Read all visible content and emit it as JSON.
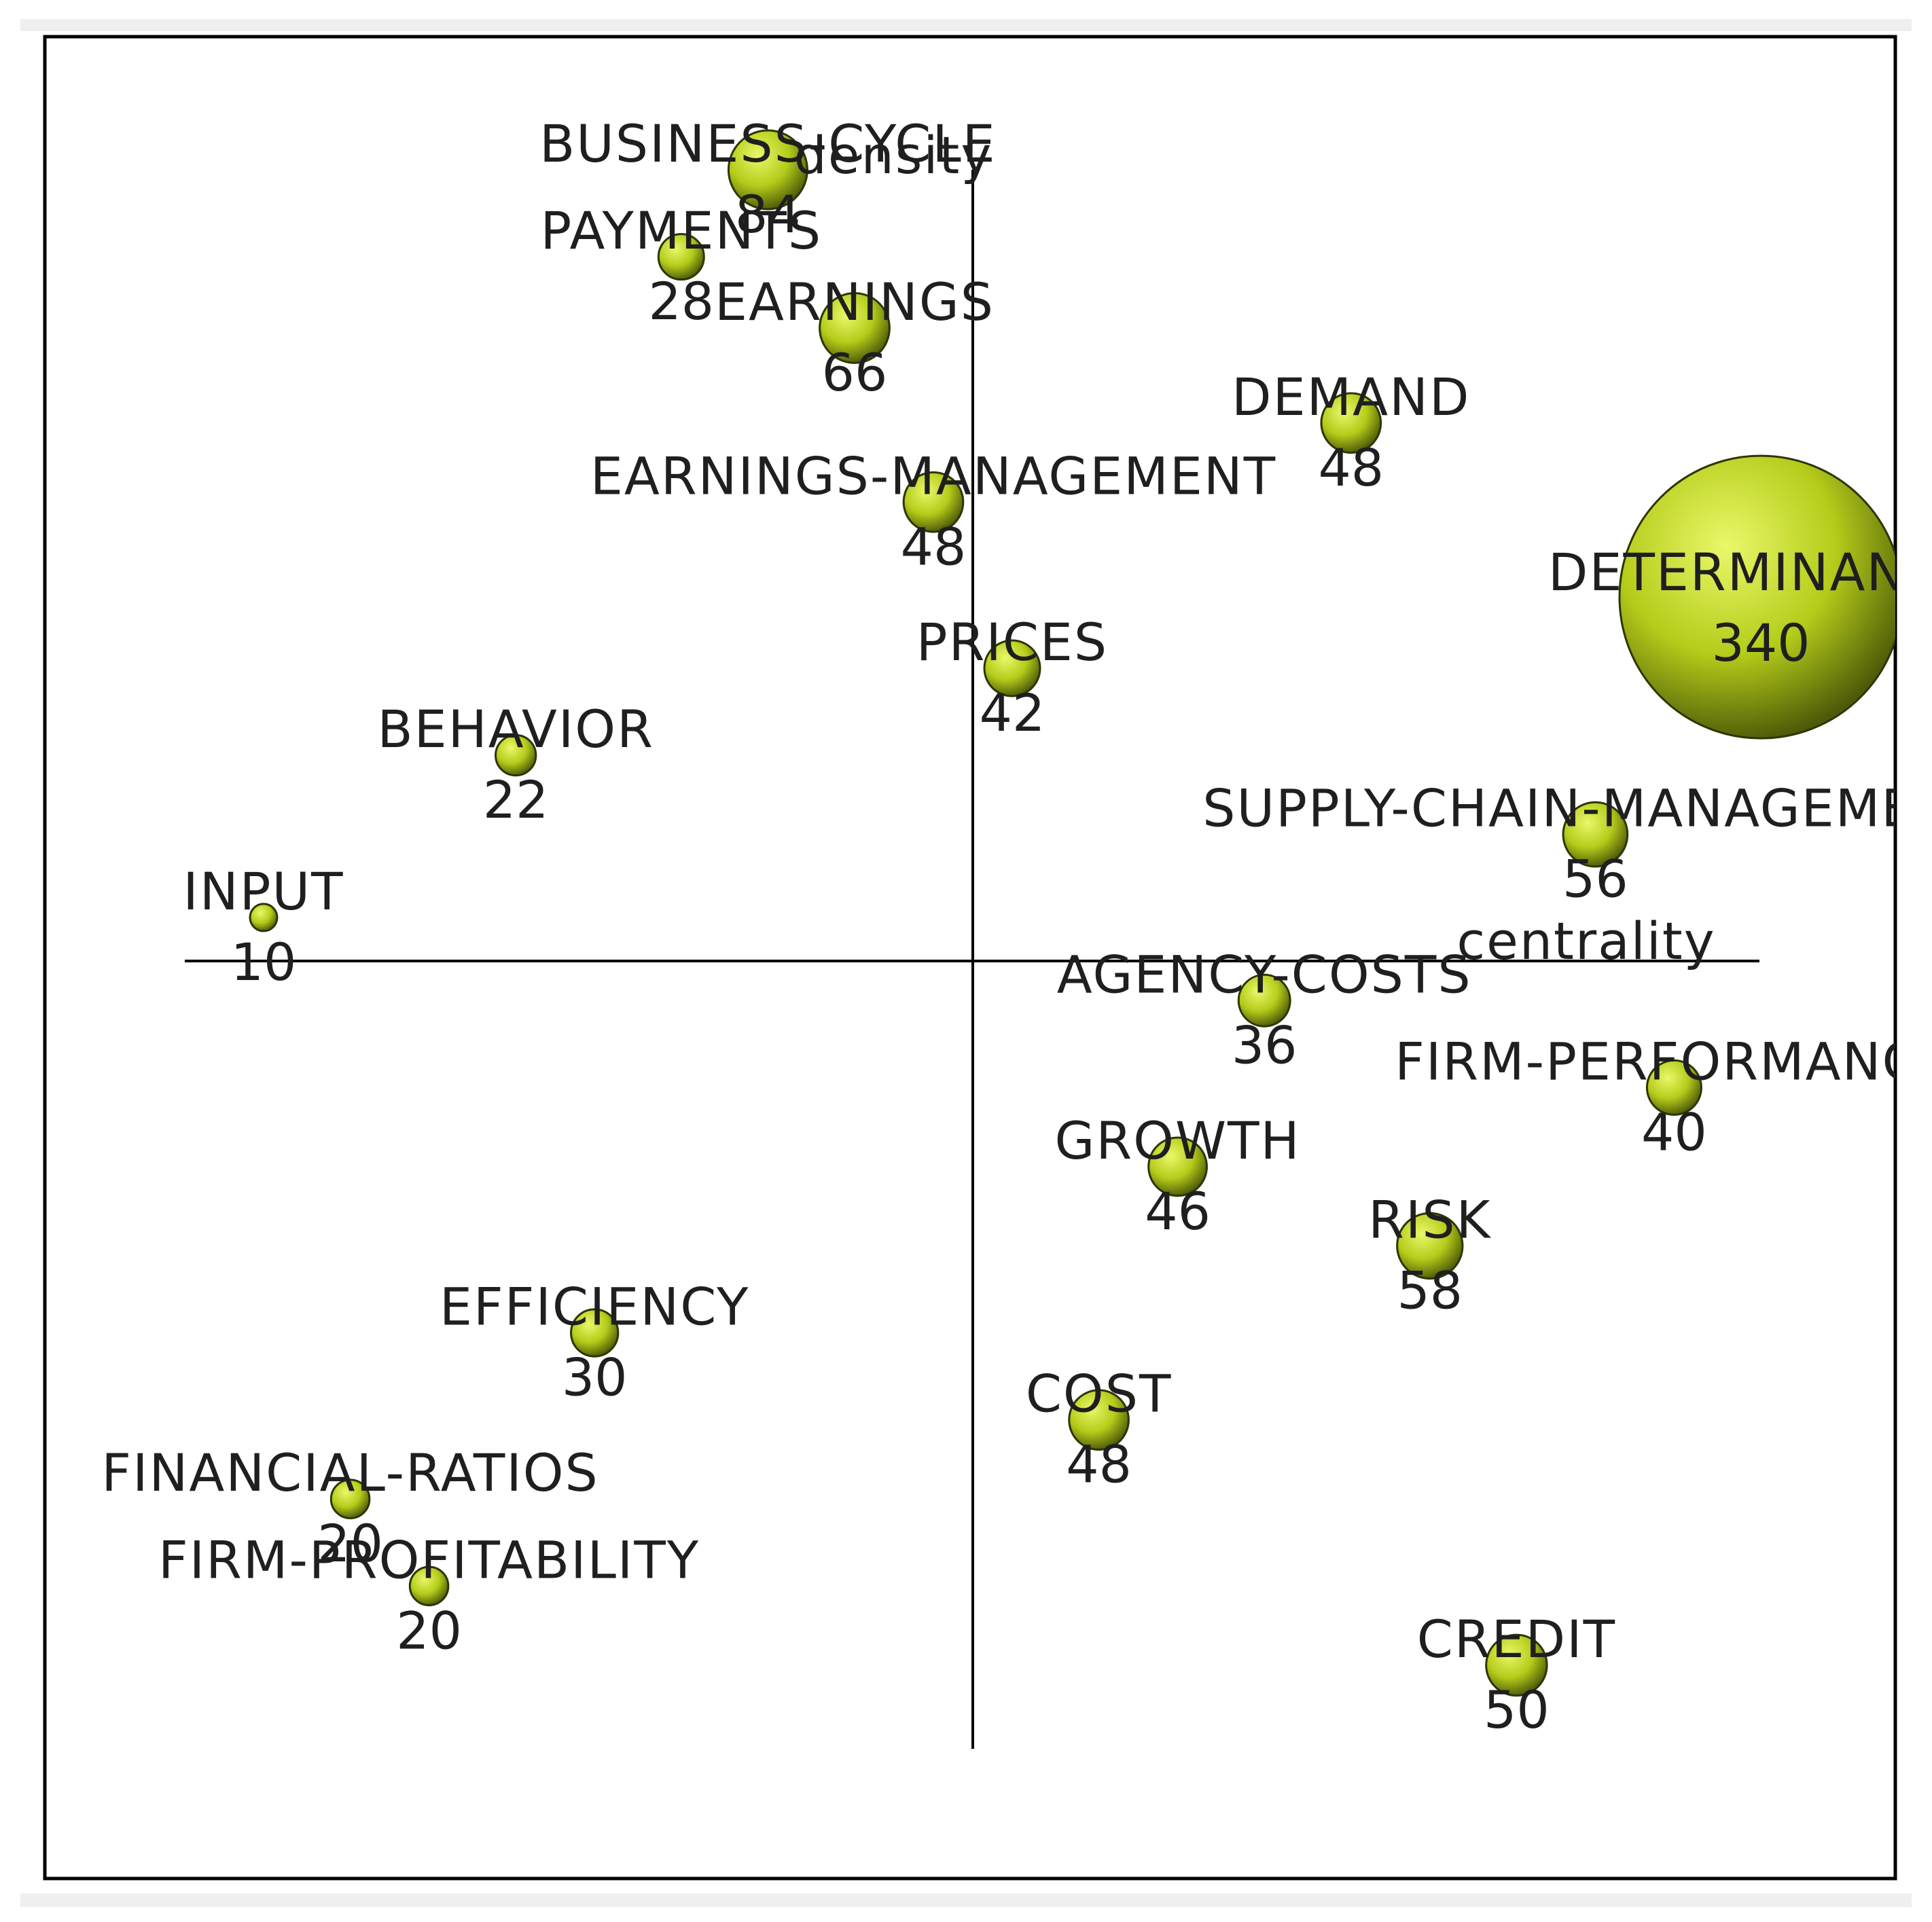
{
  "chart_data": {
    "type": "scatter",
    "title": "",
    "xlabel": "centrality",
    "ylabel": "density",
    "xlim": [
      -1,
      1
    ],
    "ylim": [
      -1,
      1
    ],
    "grid": false,
    "marker_size_is_value": true,
    "colors": {
      "bubble_fill": "#b5cc1a",
      "bubble_highlight": "#e9f86a",
      "bubble_shadow": "#4e5a08",
      "axis": "#000000",
      "frame": "#000000"
    },
    "points": [
      {
        "label": "BUSINESS-CYCLE",
        "value": "84",
        "size": 84,
        "x": -0.26,
        "y": 1.0
      },
      {
        "label": "PAYMENTS",
        "value": "28",
        "size": 28,
        "x": -0.37,
        "y": 0.89
      },
      {
        "label": "EARNINGS",
        "value": "66",
        "size": 66,
        "x": -0.15,
        "y": 0.8
      },
      {
        "label": "DEMAND",
        "value": "48",
        "size": 48,
        "x": 0.48,
        "y": 0.68
      },
      {
        "label": "EARNINGS-MANAGEMENT",
        "value": "48",
        "size": 48,
        "x": -0.05,
        "y": 0.58
      },
      {
        "label": "DETERMINANTS",
        "value": "340",
        "size": 340,
        "x": 1.0,
        "y": 0.46
      },
      {
        "label": "PRICES",
        "value": "42",
        "size": 42,
        "x": 0.05,
        "y": 0.37
      },
      {
        "label": "BEHAVIOR",
        "value": "22",
        "size": 22,
        "x": -0.58,
        "y": 0.26
      },
      {
        "label": "SUPPLY-CHAIN-MANAGEMENT",
        "value": "56",
        "size": 56,
        "x": 0.79,
        "y": 0.16
      },
      {
        "label": "INPUT",
        "value": "10",
        "size": 10,
        "x": -0.9,
        "y": 0.055
      },
      {
        "label": "AGENCY-COSTS",
        "value": "36",
        "size": 36,
        "x": 0.37,
        "y": -0.05
      },
      {
        "label": "FIRM-PERFORMANCE",
        "value": "40",
        "size": 40,
        "x": 0.89,
        "y": -0.16
      },
      {
        "label": "GROWTH",
        "value": "46",
        "size": 46,
        "x": 0.26,
        "y": -0.26
      },
      {
        "label": "RISK",
        "value": "58",
        "size": 58,
        "x": 0.58,
        "y": -0.36
      },
      {
        "label": "EFFICIENCY",
        "value": "30",
        "size": 30,
        "x": -0.48,
        "y": -0.47
      },
      {
        "label": "COST",
        "value": "48",
        "size": 48,
        "x": 0.16,
        "y": -0.58
      },
      {
        "label": "FINANCIAL-RATIOS",
        "value": "20",
        "size": 20,
        "x": -0.79,
        "y": -0.68
      },
      {
        "label": "FIRM-PROFITABILITY",
        "value": "20",
        "size": 20,
        "x": -0.69,
        "y": -0.79
      },
      {
        "label": "CREDIT",
        "value": "50",
        "size": 50,
        "x": 0.69,
        "y": -0.89
      }
    ]
  }
}
